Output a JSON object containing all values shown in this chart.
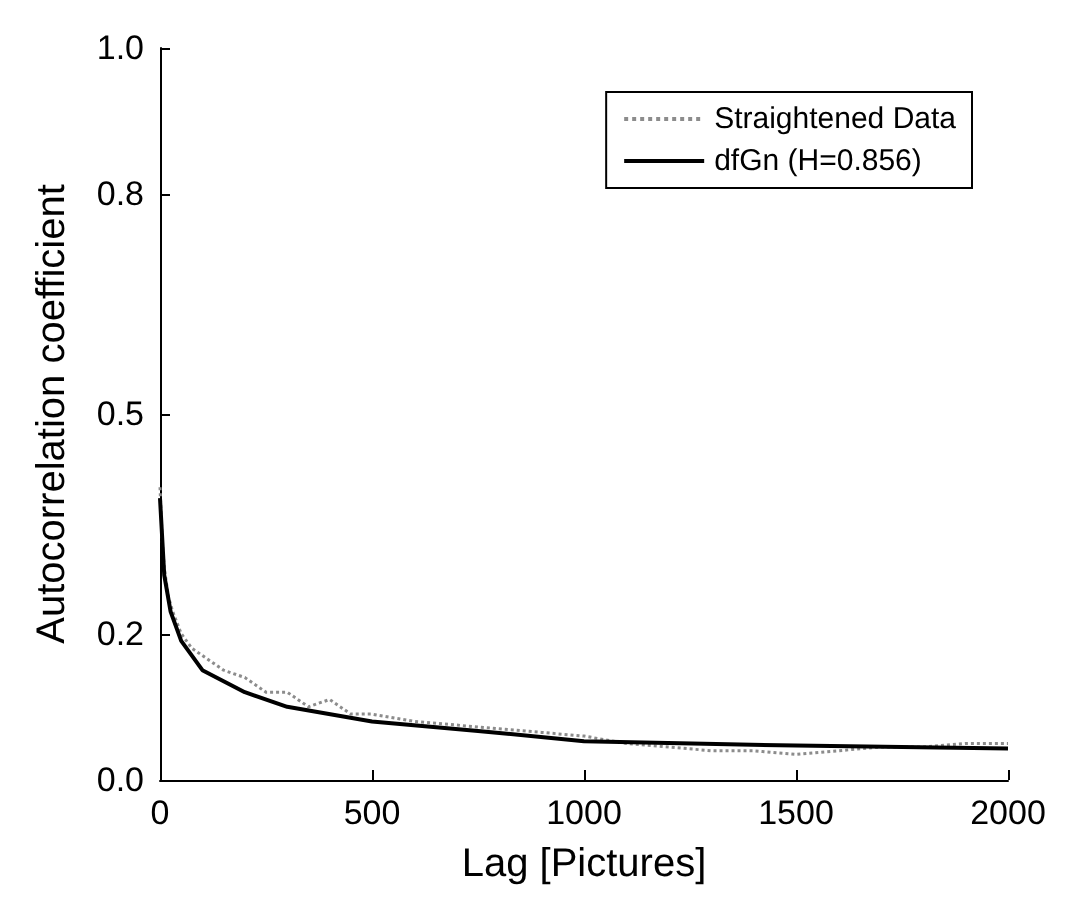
{
  "chart_data": {
    "type": "line",
    "xlabel": "Lag [Pictures]",
    "ylabel": "Autocorrelation coefficient",
    "xlim": [
      0,
      2000
    ],
    "xticks": [
      0,
      500,
      1000,
      1500,
      2000
    ],
    "ylim": [
      0,
      1
    ],
    "yticks": [
      {
        "value": 0,
        "label": "0.0"
      },
      0.2,
      0.5,
      0.8,
      {
        "value": 1,
        "label": "1.0"
      }
    ],
    "grid": false,
    "legend": "top right",
    "marker": "none",
    "series": [
      {
        "name": "Straightened Data",
        "color": "#8c8c8c",
        "line_style": "dotted",
        "x": [
          0,
          5,
          10,
          20,
          30,
          50,
          75,
          100,
          150,
          200,
          250,
          300,
          350,
          400,
          450,
          500,
          600,
          700,
          800,
          900,
          1000,
          1100,
          1200,
          1300,
          1400,
          1500,
          1600,
          1700,
          1800,
          1900,
          2000
        ],
        "values": [
          0.4,
          0.33,
          0.29,
          0.25,
          0.23,
          0.2,
          0.18,
          0.17,
          0.15,
          0.14,
          0.12,
          0.12,
          0.1,
          0.11,
          0.09,
          0.09,
          0.08,
          0.075,
          0.07,
          0.065,
          0.06,
          0.05,
          0.045,
          0.04,
          0.04,
          0.035,
          0.04,
          0.045,
          0.045,
          0.05,
          0.05
        ]
      },
      {
        "name": "dfGn (H=0.856)",
        "color": "#000000",
        "line_style": "solid",
        "x": [
          0,
          10,
          25,
          50,
          100,
          200,
          300,
          500,
          750,
          1000,
          1500,
          2000
        ],
        "values": [
          0.385,
          0.28,
          0.23,
          0.19,
          0.15,
          0.12,
          0.1,
          0.08,
          0.067,
          0.053,
          0.047,
          0.043
        ]
      }
    ]
  }
}
